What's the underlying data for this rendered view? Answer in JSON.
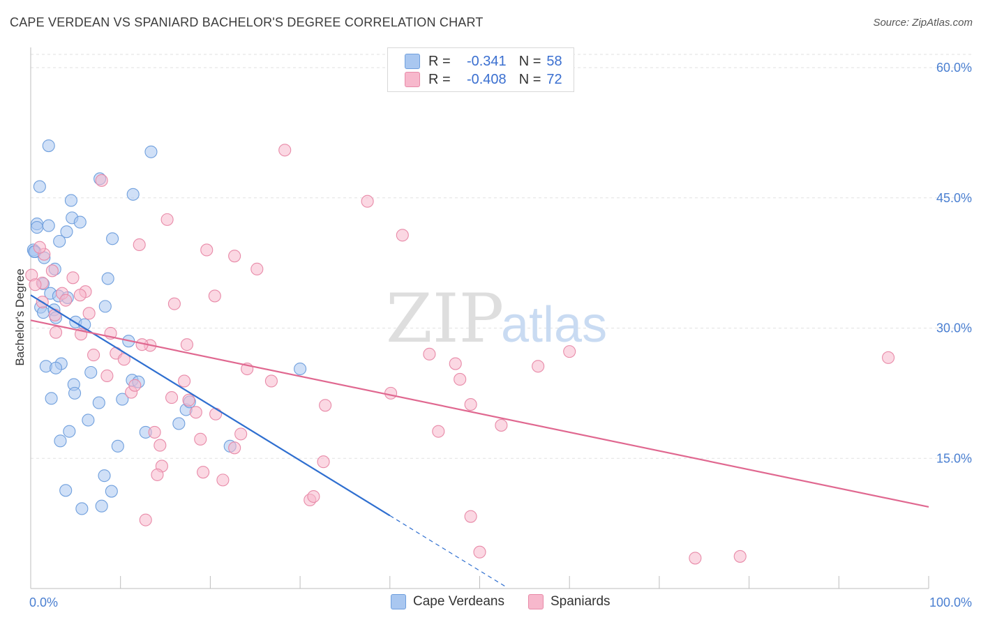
{
  "title": "CAPE VERDEAN VS SPANIARD BACHELOR'S DEGREE CORRELATION CHART",
  "source": "Source: ZipAtlas.com",
  "watermark": {
    "zip": "ZIP",
    "atlas": "atlas"
  },
  "legend": {
    "rows": [
      {
        "r_label": "R =",
        "r_value": "-0.341",
        "n_label": "N =",
        "n_value": "58",
        "color": "#a9c7f0"
      },
      {
        "r_label": "R =",
        "r_value": "-0.408",
        "n_label": "N =",
        "n_value": "72",
        "color": "#f7b8cc"
      }
    ]
  },
  "bottom_legend": {
    "items": [
      {
        "label": "Cape Verdeans",
        "color": "#a9c7f0"
      },
      {
        "label": "Spaniards",
        "color": "#f7b8cc"
      }
    ]
  },
  "chart_data": {
    "type": "scatter",
    "title": "CAPE VERDEAN VS SPANIARD BACHELOR'S DEGREE CORRELATION CHART",
    "xlabel": "",
    "ylabel": "Bachelor's Degree",
    "xlim": [
      0,
      100
    ],
    "ylim": [
      0,
      60
    ],
    "x_tick_labels": [
      "0.0%",
      "100.0%"
    ],
    "y_ticks": [
      15,
      30,
      45,
      60
    ],
    "y_tick_labels": [
      "15.0%",
      "30.0%",
      "45.0%",
      "60.0%"
    ],
    "grid": true,
    "series": [
      {
        "name": "Cape Verdeans",
        "color": "#a9c7f0",
        "stroke": "#6f9fdd",
        "trend": {
          "x0": 0,
          "y0": 33.8,
          "x1": 40,
          "y1": 8.4,
          "dash_to_x": 53,
          "color": "#2f6fd0"
        },
        "points": [
          [
            2.0,
            51.0
          ],
          [
            13.4,
            50.3
          ],
          [
            1.0,
            46.3
          ],
          [
            7.7,
            47.2
          ],
          [
            11.4,
            45.4
          ],
          [
            4.5,
            44.7
          ],
          [
            0.7,
            42.0
          ],
          [
            2.0,
            41.8
          ],
          [
            4.6,
            42.7
          ],
          [
            5.5,
            42.2
          ],
          [
            0.7,
            41.6
          ],
          [
            4.0,
            41.1
          ],
          [
            9.1,
            40.3
          ],
          [
            3.2,
            40.0
          ],
          [
            0.3,
            39.0
          ],
          [
            0.5,
            38.8
          ],
          [
            1.5,
            38.1
          ],
          [
            2.7,
            36.8
          ],
          [
            8.6,
            35.7
          ],
          [
            1.4,
            35.1
          ],
          [
            2.2,
            34.0
          ],
          [
            3.1,
            33.7
          ],
          [
            4.1,
            33.5
          ],
          [
            8.3,
            32.5
          ],
          [
            1.1,
            32.4
          ],
          [
            1.4,
            31.8
          ],
          [
            2.6,
            32.1
          ],
          [
            2.8,
            31.2
          ],
          [
            5.0,
            30.7
          ],
          [
            6.0,
            30.4
          ],
          [
            10.9,
            28.5
          ],
          [
            3.4,
            25.9
          ],
          [
            1.7,
            25.6
          ],
          [
            2.8,
            25.4
          ],
          [
            6.7,
            24.9
          ],
          [
            11.3,
            24.0
          ],
          [
            12.0,
            23.8
          ],
          [
            4.8,
            23.5
          ],
          [
            4.9,
            22.5
          ],
          [
            30.0,
            25.3
          ],
          [
            2.3,
            21.9
          ],
          [
            7.6,
            21.4
          ],
          [
            10.2,
            21.8
          ],
          [
            17.3,
            20.6
          ],
          [
            6.4,
            19.4
          ],
          [
            16.5,
            19.0
          ],
          [
            17.7,
            21.5
          ],
          [
            4.3,
            18.1
          ],
          [
            12.8,
            18.0
          ],
          [
            3.3,
            17.0
          ],
          [
            9.7,
            16.4
          ],
          [
            22.2,
            16.4
          ],
          [
            8.2,
            13.0
          ],
          [
            3.9,
            11.3
          ],
          [
            9.0,
            11.2
          ],
          [
            5.7,
            9.2
          ],
          [
            7.9,
            9.5
          ],
          [
            0.4,
            38.8
          ]
        ]
      },
      {
        "name": "Spaniards",
        "color": "#f7b8cc",
        "stroke": "#e88aa8",
        "trend": {
          "x0": 0,
          "y0": 30.9,
          "x1": 100,
          "y1": 9.4,
          "color": "#e06890"
        },
        "points": [
          [
            28.3,
            50.5
          ],
          [
            7.9,
            47.0
          ],
          [
            37.5,
            44.6
          ],
          [
            15.2,
            42.5
          ],
          [
            41.4,
            40.7
          ],
          [
            12.1,
            39.6
          ],
          [
            19.6,
            39.0
          ],
          [
            22.7,
            38.3
          ],
          [
            0.1,
            36.1
          ],
          [
            1.5,
            38.5
          ],
          [
            1.0,
            39.3
          ],
          [
            25.2,
            36.8
          ],
          [
            4.7,
            35.8
          ],
          [
            2.4,
            36.6
          ],
          [
            1.3,
            35.2
          ],
          [
            3.5,
            34.0
          ],
          [
            6.1,
            34.2
          ],
          [
            5.5,
            33.8
          ],
          [
            20.5,
            33.7
          ],
          [
            3.9,
            33.2
          ],
          [
            16.0,
            32.8
          ],
          [
            2.7,
            31.5
          ],
          [
            6.5,
            31.7
          ],
          [
            2.8,
            29.5
          ],
          [
            5.6,
            29.3
          ],
          [
            8.9,
            29.4
          ],
          [
            13.3,
            28.0
          ],
          [
            12.4,
            28.1
          ],
          [
            17.4,
            28.1
          ],
          [
            9.5,
            27.1
          ],
          [
            7.0,
            26.9
          ],
          [
            10.4,
            26.4
          ],
          [
            44.4,
            27.0
          ],
          [
            47.3,
            25.9
          ],
          [
            56.5,
            25.6
          ],
          [
            60.0,
            27.3
          ],
          [
            95.5,
            26.6
          ],
          [
            24.1,
            25.3
          ],
          [
            8.5,
            24.5
          ],
          [
            26.8,
            23.9
          ],
          [
            17.1,
            23.9
          ],
          [
            47.8,
            24.1
          ],
          [
            11.2,
            22.6
          ],
          [
            11.6,
            23.4
          ],
          [
            40.1,
            22.5
          ],
          [
            15.7,
            22.0
          ],
          [
            17.6,
            21.7
          ],
          [
            32.8,
            21.1
          ],
          [
            49.0,
            21.2
          ],
          [
            18.4,
            20.3
          ],
          [
            20.6,
            20.1
          ],
          [
            13.8,
            18.0
          ],
          [
            23.4,
            17.8
          ],
          [
            45.4,
            18.1
          ],
          [
            52.4,
            18.8
          ],
          [
            18.9,
            17.2
          ],
          [
            14.4,
            16.5
          ],
          [
            22.7,
            16.2
          ],
          [
            14.6,
            14.1
          ],
          [
            19.2,
            13.4
          ],
          [
            32.6,
            14.6
          ],
          [
            14.1,
            13.1
          ],
          [
            21.4,
            12.5
          ],
          [
            31.1,
            10.2
          ],
          [
            31.5,
            10.6
          ],
          [
            12.8,
            7.9
          ],
          [
            49.0,
            8.3
          ],
          [
            50.0,
            4.2
          ],
          [
            74.0,
            3.5
          ],
          [
            79.0,
            3.7
          ],
          [
            0.5,
            35.0
          ],
          [
            1.3,
            33.0
          ]
        ]
      }
    ]
  }
}
